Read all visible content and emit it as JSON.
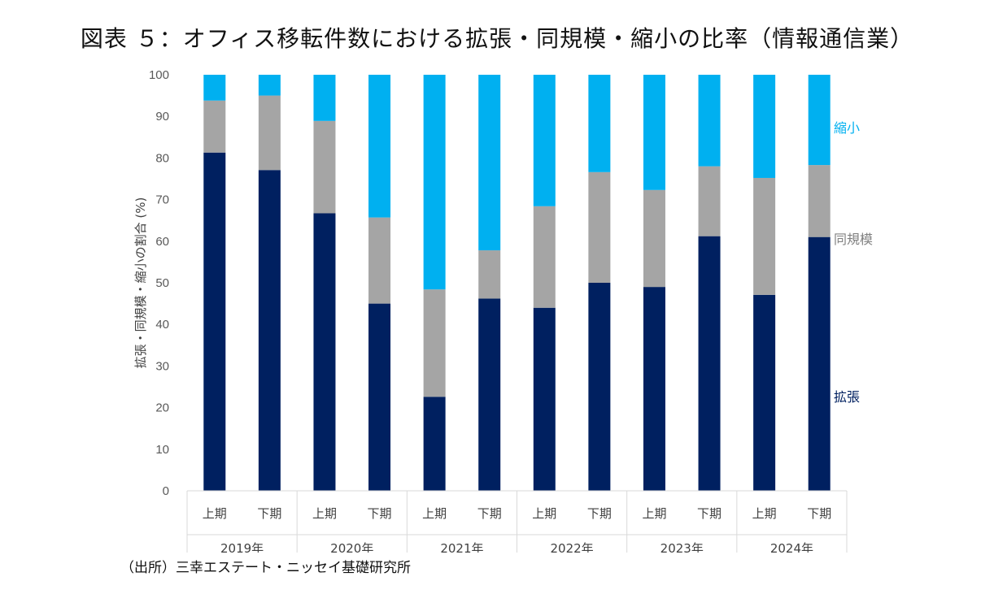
{
  "title": "図表 ５：オフィス移転件数における拡張・同規模・縮小の比率（情報通信業）",
  "source": "（出所）三幸エステート・ニッセイ基礎研究所",
  "chart_data": {
    "type": "bar",
    "stacked": true,
    "ylabel": "拡張・同規模・縮小の割合 (%)",
    "ylim": [
      0,
      100
    ],
    "yticks": [
      0,
      10,
      20,
      30,
      40,
      50,
      60,
      70,
      80,
      90,
      100
    ],
    "categories": [
      "上期",
      "下期",
      "上期",
      "下期",
      "上期",
      "下期",
      "上期",
      "下期",
      "上期",
      "下期",
      "上期",
      "下期"
    ],
    "groups": [
      {
        "label": "2019年",
        "span": 2
      },
      {
        "label": "2020年",
        "span": 2
      },
      {
        "label": "2021年",
        "span": 2
      },
      {
        "label": "2022年",
        "span": 2
      },
      {
        "label": "2023年",
        "span": 2
      },
      {
        "label": "2024年",
        "span": 2
      }
    ],
    "series": [
      {
        "name": "拡張",
        "color": "#002060",
        "values": [
          81.3,
          77.1,
          66.7,
          45.0,
          22.6,
          46.2,
          44.0,
          50.0,
          49.0,
          61.2,
          47.1,
          61.0
        ]
      },
      {
        "name": "同規模",
        "color": "#A5A5A5",
        "values": [
          12.5,
          17.9,
          22.2,
          20.7,
          25.8,
          11.6,
          24.4,
          26.6,
          23.3,
          16.8,
          28.1,
          17.3
        ]
      },
      {
        "name": "縮小",
        "color": "#00B0F0",
        "values": [
          6.2,
          5.0,
          11.1,
          34.3,
          51.6,
          42.2,
          31.6,
          23.4,
          27.7,
          22.0,
          24.8,
          21.7
        ]
      }
    ],
    "legend": "right"
  }
}
